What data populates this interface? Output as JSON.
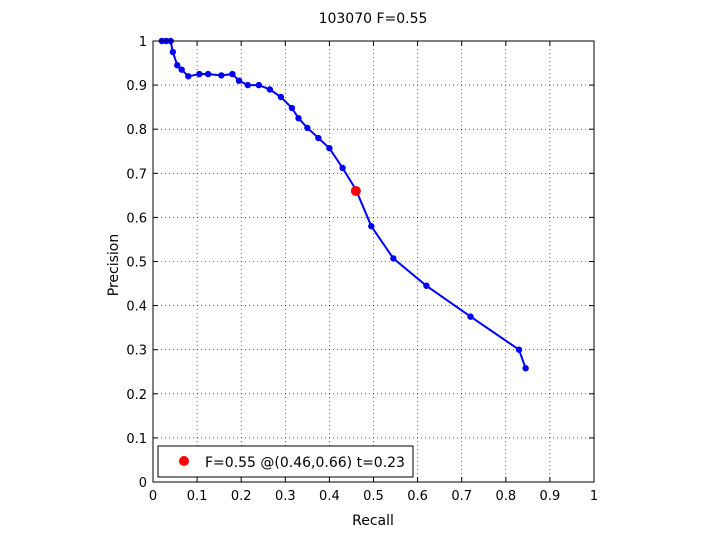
{
  "chart_data": {
    "type": "line",
    "title": "103070 F=0.55",
    "xlabel": "Recall",
    "ylabel": "Precision",
    "xlim": [
      0,
      1
    ],
    "ylim": [
      0,
      1
    ],
    "grid": true,
    "legend_position": "bottom-left",
    "x_ticks": [
      "0",
      "0.1",
      "0.2",
      "0.3",
      "0.4",
      "0.5",
      "0.6",
      "0.7",
      "0.8",
      "0.9",
      "1"
    ],
    "y_ticks": [
      "0",
      "0.1",
      "0.2",
      "0.3",
      "0.4",
      "0.5",
      "0.6",
      "0.7",
      "0.8",
      "0.9",
      "1"
    ],
    "series": [
      {
        "color": "#0000ff",
        "marker": "dot",
        "points": [
          [
            0.02,
            1.0
          ],
          [
            0.03,
            1.0
          ],
          [
            0.04,
            1.0
          ],
          [
            0.045,
            0.975
          ],
          [
            0.055,
            0.945
          ],
          [
            0.065,
            0.935
          ],
          [
            0.08,
            0.92
          ],
          [
            0.105,
            0.925
          ],
          [
            0.125,
            0.925
          ],
          [
            0.155,
            0.922
          ],
          [
            0.18,
            0.925
          ],
          [
            0.195,
            0.91
          ],
          [
            0.215,
            0.9
          ],
          [
            0.24,
            0.9
          ],
          [
            0.265,
            0.89
          ],
          [
            0.29,
            0.873
          ],
          [
            0.315,
            0.848
          ],
          [
            0.33,
            0.825
          ],
          [
            0.35,
            0.803
          ],
          [
            0.375,
            0.78
          ],
          [
            0.4,
            0.757
          ],
          [
            0.43,
            0.712
          ],
          [
            0.46,
            0.663
          ],
          [
            0.495,
            0.58
          ],
          [
            0.545,
            0.507
          ],
          [
            0.62,
            0.445
          ],
          [
            0.72,
            0.375
          ],
          [
            0.83,
            0.3
          ],
          [
            0.845,
            0.258
          ]
        ]
      }
    ],
    "highlight": {
      "x": 0.46,
      "y": 0.66,
      "color": "#ff0000",
      "label": "F=0.55 @(0.46,0.66) t=0.23"
    }
  }
}
